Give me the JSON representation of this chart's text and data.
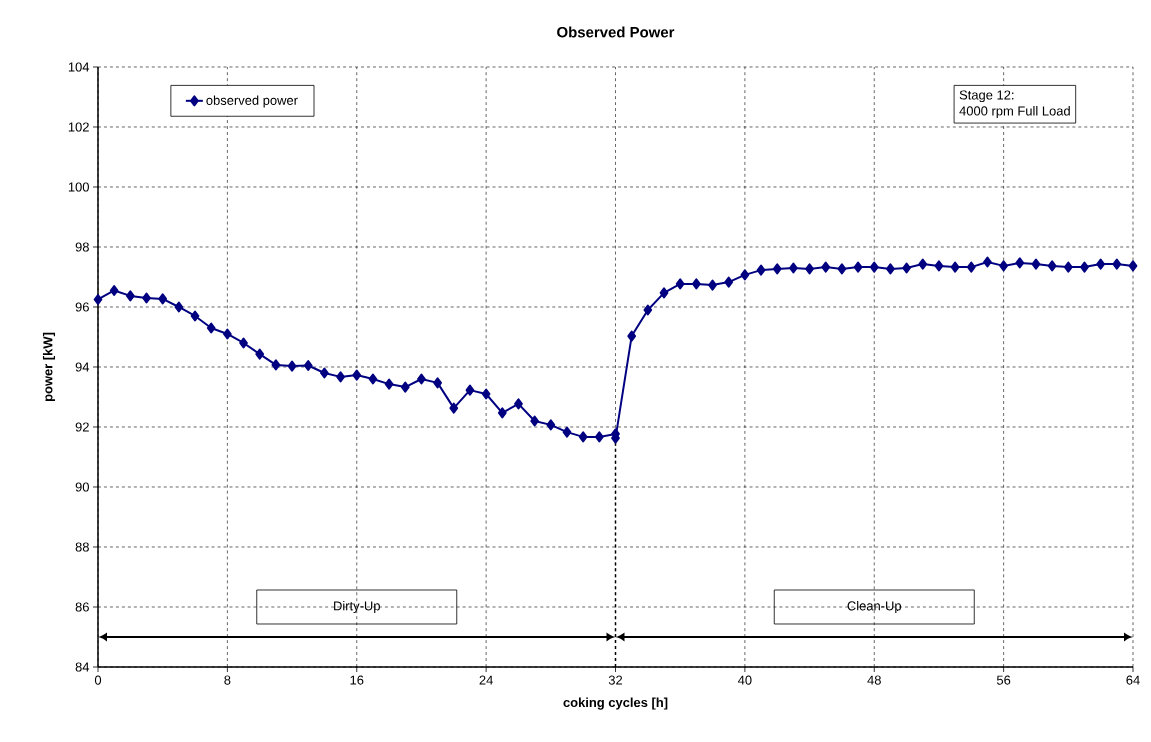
{
  "chart_data": {
    "type": "line",
    "title": "Observed Power",
    "xlabel": "coking cycles [h]",
    "ylabel": "power [kW]",
    "x": [
      0,
      1,
      2,
      3,
      4,
      5,
      6,
      7,
      8,
      9,
      10,
      11,
      12,
      13,
      14,
      15,
      16,
      17,
      18,
      19,
      20,
      21,
      22,
      23,
      24,
      25,
      26,
      27,
      28,
      29,
      30,
      31,
      32,
      32,
      33,
      34,
      35,
      36,
      37,
      38,
      39,
      40,
      41,
      42,
      43,
      44,
      45,
      46,
      47,
      48,
      49,
      50,
      51,
      52,
      53,
      54,
      55,
      56,
      57,
      58,
      59,
      60,
      61,
      62,
      63,
      64
    ],
    "series": [
      {
        "name": "observed power",
        "color": "#000080",
        "values": [
          96.25,
          96.55,
          96.37,
          96.3,
          96.27,
          96.0,
          95.7,
          95.3,
          95.1,
          94.8,
          94.43,
          94.07,
          94.03,
          94.05,
          93.8,
          93.67,
          93.73,
          93.6,
          93.43,
          93.33,
          93.6,
          93.47,
          92.63,
          93.23,
          93.1,
          92.47,
          92.77,
          92.2,
          92.07,
          91.83,
          91.67,
          91.67,
          91.77,
          91.63,
          95.03,
          95.9,
          96.47,
          96.77,
          96.77,
          96.73,
          96.83,
          97.07,
          97.23,
          97.27,
          97.3,
          97.27,
          97.33,
          97.27,
          97.33,
          97.33,
          97.27,
          97.3,
          97.43,
          97.37,
          97.33,
          97.33,
          97.5,
          97.37,
          97.47,
          97.43,
          97.37,
          97.33,
          97.33,
          97.43,
          97.43,
          97.37
        ]
      }
    ],
    "xlim": [
      0,
      64
    ],
    "xticks": [
      0,
      8,
      16,
      24,
      32,
      40,
      48,
      56,
      64
    ],
    "ylim": [
      84,
      104
    ],
    "yticks": [
      84,
      86,
      88,
      90,
      92,
      94,
      96,
      98,
      100,
      102,
      104
    ],
    "grid": true,
    "legend": "top left",
    "marker": "diamond",
    "line_style": "solid",
    "annotations": [
      "Stage 12:",
      "4000 rpm Full Load",
      "Dirty-Up",
      "Clean-Up"
    ],
    "ref_lines": [
      {
        "axis": "x",
        "value": 32,
        "line_style": "dashed"
      }
    ]
  }
}
